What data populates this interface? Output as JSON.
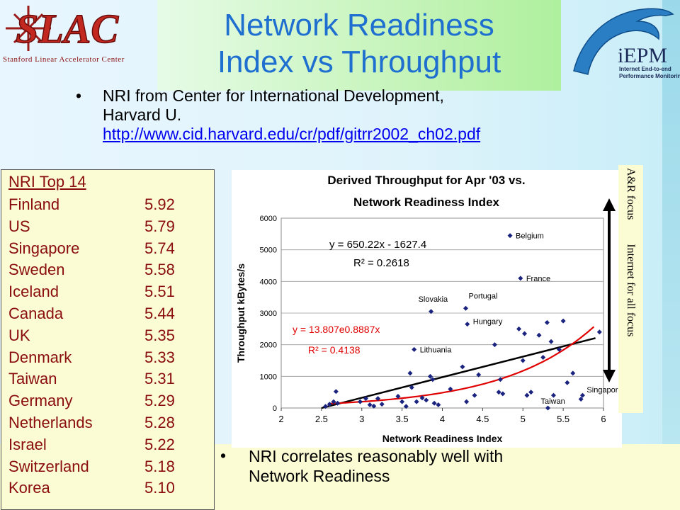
{
  "title": {
    "line1": "Network Readiness",
    "line2": "Index vs Throughput"
  },
  "logos": {
    "slac_text": "SLAC",
    "slac_sub": "Stanford Linear Accelerator Center",
    "iepm_text": "iEPM",
    "iepm_sub1": "Internet End-to-end",
    "iepm_sub2": "Performance Monitoring"
  },
  "bullet1": {
    "marker": "•",
    "line1": "NRI from Center for International Development,",
    "line2": "Harvard U.",
    "link": "http://www.cid.harvard.edu/cr/pdf/gitrr2002_ch02.pdf"
  },
  "nri_box": {
    "header": "NRI Top 14",
    "rows": [
      {
        "country": "Finland",
        "value": "5.92"
      },
      {
        "country": "US",
        "value": "5.79"
      },
      {
        "country": "Singapore",
        "value": "5.74"
      },
      {
        "country": "Sweden",
        "value": "5.58"
      },
      {
        "country": "Iceland",
        "value": "5.51"
      },
      {
        "country": "Canada",
        "value": "5.44"
      },
      {
        "country": "UK",
        "value": "5.35"
      },
      {
        "country": "Denmark",
        "value": "5.33"
      },
      {
        "country": "Taiwan",
        "value": "5.31"
      },
      {
        "country": "Germany",
        "value": "5.29"
      },
      {
        "country": "Netherlands",
        "value": "5.28"
      },
      {
        "country": "Israel",
        "value": "5.22"
      },
      {
        "country": "Switzerland",
        "value": "5.18"
      },
      {
        "country": "Korea",
        "value": "5.10"
      }
    ]
  },
  "side_label": {
    "top": "A&R focus",
    "bottom": "Internet for all focus"
  },
  "bullet2": {
    "marker": "•",
    "line1": "NRI correlates reasonably well with",
    "line2": "Network Readiness"
  },
  "colors": {
    "title": "#1e6fd0",
    "nri_text": "#8a0d0d",
    "points": "#1a237e",
    "linear_fit": "#000000",
    "exp_fit": "#e00000"
  },
  "chart_data": {
    "type": "scatter",
    "title": "Derived Throughput for Apr '03 vs. Network Readiness Index",
    "title_line1": "Derived Throughput for Apr '03 vs.",
    "title_line2": "Network Readiness Index",
    "xlabel": "Network Readiness Index",
    "ylabel": "Throughput kBytes/s",
    "xlim": [
      2,
      6
    ],
    "ylim": [
      0,
      6000
    ],
    "xticks": [
      "2",
      "2.5",
      "3",
      "3.5",
      "4",
      "4.5",
      "5",
      "5.5",
      "6"
    ],
    "yticks": [
      "0",
      "1000",
      "2000",
      "3000",
      "4000",
      "5000",
      "6000"
    ],
    "grid": "horizontal",
    "points": [
      [
        2.55,
        50
      ],
      [
        2.6,
        120
      ],
      [
        2.65,
        200
      ],
      [
        2.68,
        520
      ],
      [
        2.7,
        150
      ],
      [
        2.98,
        200
      ],
      [
        3.05,
        300
      ],
      [
        3.1,
        100
      ],
      [
        3.15,
        60
      ],
      [
        3.2,
        300
      ],
      [
        3.25,
        120
      ],
      [
        3.45,
        370
      ],
      [
        3.5,
        200
      ],
      [
        3.55,
        50
      ],
      [
        3.6,
        1100
      ],
      [
        3.62,
        650
      ],
      [
        3.68,
        200
      ],
      [
        3.75,
        320
      ],
      [
        3.8,
        250
      ],
      [
        3.85,
        1000
      ],
      [
        3.88,
        900
      ],
      [
        3.9,
        150
      ],
      [
        3.95,
        100
      ],
      [
        4.1,
        600
      ],
      [
        4.25,
        1300
      ],
      [
        4.3,
        200
      ],
      [
        4.4,
        400
      ],
      [
        4.45,
        1050
      ],
      [
        4.65,
        2000
      ],
      [
        4.7,
        500
      ],
      [
        4.72,
        900
      ],
      [
        4.75,
        450
      ],
      [
        4.95,
        2500
      ],
      [
        5.0,
        1500
      ],
      [
        5.02,
        2350
      ],
      [
        5.05,
        400
      ],
      [
        5.1,
        500
      ],
      [
        5.2,
        2300
      ],
      [
        5.25,
        1600
      ],
      [
        5.3,
        2700
      ],
      [
        5.35,
        2100
      ],
      [
        5.38,
        400
      ],
      [
        5.45,
        1850
      ],
      [
        5.5,
        2750
      ],
      [
        5.55,
        800
      ],
      [
        5.62,
        1100
      ],
      [
        5.72,
        280
      ],
      [
        5.95,
        2400
      ]
    ],
    "labeled_points": [
      {
        "label": "Belgium",
        "x": 4.84,
        "y": 5450
      },
      {
        "label": "France",
        "x": 4.97,
        "y": 4100
      },
      {
        "label": "Slovakia",
        "x": 3.86,
        "y": 3050
      },
      {
        "label": "Portugal",
        "x": 4.29,
        "y": 3150
      },
      {
        "label": "Hungary",
        "x": 4.31,
        "y": 2650
      },
      {
        "label": "Lithuania",
        "x": 3.65,
        "y": 1850
      },
      {
        "label": "Taiwan",
        "x": 5.31,
        "y": 0
      },
      {
        "label": "Singapore",
        "x": 5.74,
        "y": 400
      }
    ],
    "series": [
      {
        "name": "y = 650.22x - 1627.4",
        "r2": "R² = 0.2618",
        "fit": "linear",
        "slope": 650.22,
        "intercept": -1627.4
      },
      {
        "name": "y = 13.807e0.8887x",
        "r2": "R² = 0.4138",
        "fit": "exponential",
        "a": 13.807,
        "b": 0.8887
      }
    ]
  }
}
